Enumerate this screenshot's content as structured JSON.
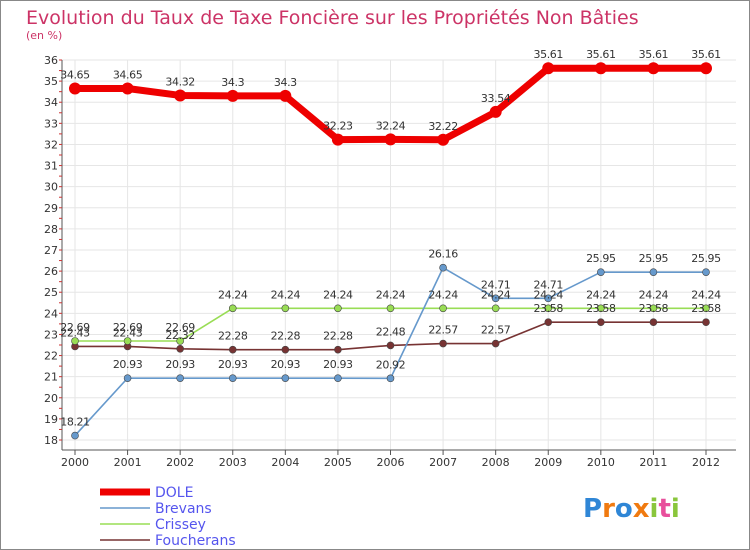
{
  "chart_data": {
    "type": "line",
    "title": "Evolution du Taux de Taxe Foncière sur les Propriétés Non Bâties",
    "subtitle": "(en %)",
    "xlabel": "",
    "ylabel": "",
    "categories": [
      "2000",
      "2001",
      "2002",
      "2003",
      "2004",
      "2005",
      "2006",
      "2007",
      "2008",
      "2009",
      "2010",
      "2011",
      "2012"
    ],
    "ylim": [
      18,
      36
    ],
    "yticks": [
      "18",
      "19",
      "20",
      "21",
      "22",
      "23",
      "24",
      "25",
      "26",
      "27",
      "28",
      "29",
      "30",
      "31",
      "32",
      "33",
      "34",
      "35",
      "36"
    ],
    "grid": true,
    "legend_position": "bottom-left",
    "series": [
      {
        "name": "DOLE",
        "color": "#ee0000",
        "values": [
          34.65,
          34.65,
          34.32,
          34.3,
          34.3,
          32.23,
          32.24,
          32.22,
          33.54,
          35.61,
          35.61,
          35.61,
          35.61
        ],
        "labels": [
          "34.65",
          "34.65",
          "34.32",
          "34.3",
          "34.3",
          "32.23",
          "32.24",
          "32.22",
          "33.54",
          "35.61",
          "35.61",
          "35.61",
          "35.61"
        ]
      },
      {
        "name": "Brevans",
        "color": "#6699cc",
        "values": [
          18.21,
          20.93,
          20.93,
          20.93,
          20.93,
          20.93,
          20.92,
          26.16,
          24.71,
          24.71,
          25.95,
          25.95,
          25.95
        ],
        "labels": [
          "18.21",
          "20.93",
          "20.93",
          "20.93",
          "20.93",
          "20.93",
          "20.92",
          "26.16",
          "24.71",
          "24.71",
          "25.95",
          "25.95",
          "25.95"
        ]
      },
      {
        "name": "Crissey",
        "color": "#99dd55",
        "values": [
          22.69,
          22.69,
          22.69,
          24.24,
          24.24,
          24.24,
          24.24,
          24.24,
          24.24,
          24.24,
          24.24,
          24.24,
          24.24
        ],
        "labels": [
          "22.69",
          "22.69",
          "22.69",
          "24.24",
          "24.24",
          "24.24",
          "24.24",
          "24.24",
          "24.24",
          "24.24",
          "24.24",
          "24.24",
          "24.24"
        ]
      },
      {
        "name": "Foucherans",
        "color": "#773333",
        "values": [
          22.43,
          22.43,
          22.32,
          22.28,
          22.28,
          22.28,
          22.48,
          22.57,
          22.57,
          23.58,
          23.58,
          23.58,
          23.58
        ],
        "labels": [
          "22.43",
          "22.43",
          "22.32",
          "22.28",
          "22.28",
          "22.28",
          "22.48",
          "22.57",
          "22.57",
          "23.58",
          "23.58",
          "23.58",
          "23.58"
        ]
      }
    ]
  },
  "branding": {
    "logo_text": "Proxiti"
  },
  "colors": {
    "title": "#cc3366",
    "legend_text": "#5555ee",
    "axis": "#555555",
    "grid": "#e6e6e6",
    "frame": "#888888"
  }
}
